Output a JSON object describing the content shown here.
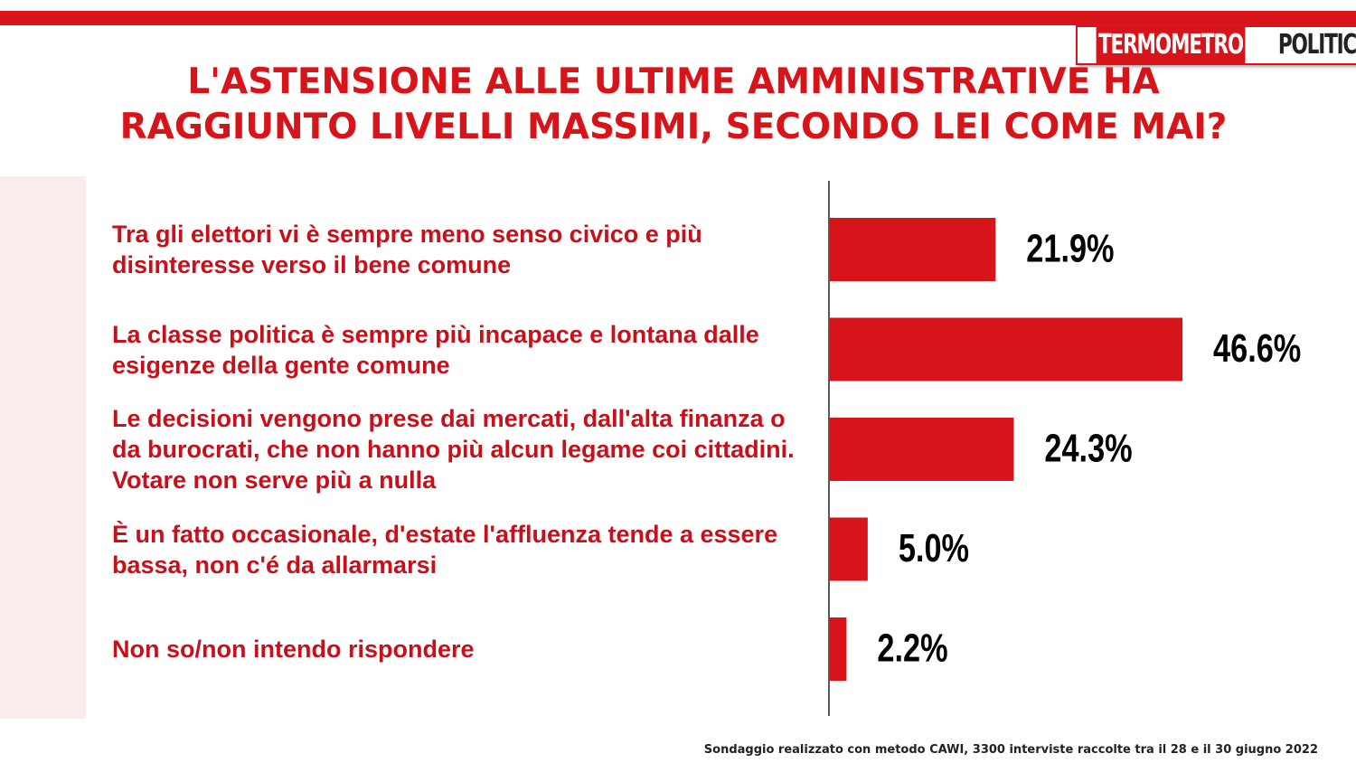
{
  "chart_data": {
    "type": "bar",
    "orientation": "horizontal",
    "title": "L'ASTENSIONE ALLE ULTIME AMMINISTRATIVE HA RAGGIUNTO LIVELLI MASSIMI, SECONDO LEI COME MAI?",
    "logo": [
      "TERMOMETRO",
      "POLITICO"
    ],
    "categories": [
      "Tra gli elettori vi è sempre meno senso civico e più disinteresse verso il bene comune",
      "La classe politica è sempre più incapace e lontana dalle esigenze della gente comune",
      "Le decisioni vengono prese dai mercati, dall'alta finanza o da burocrati, che non hanno più alcun legame coi cittadini. Votare non serve più a nulla",
      "È un fatto occasionale, d'estate l'affluenza tende a essere bassa, non c'é da allarmarsi",
      "Non so/non intendo rispondere"
    ],
    "values": [
      21.9,
      46.6,
      24.3,
      5.0,
      2.2
    ],
    "value_labels": [
      "21.9%",
      "46.6%",
      "24.3%",
      "5.0%",
      "2.2%"
    ],
    "color": "#d7141a",
    "source": "Sondaggio realizzato con metodo CAWI, 3300 interviste raccolte tra il 28 e il 30 giugno 2022"
  }
}
